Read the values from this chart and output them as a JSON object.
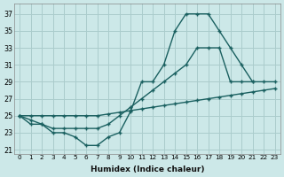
{
  "xlabel": "Humidex (Indice chaleur)",
  "background_color": "#cce8e8",
  "grid_color": "#aacccc",
  "line_color": "#1a6060",
  "xlim": [
    -0.5,
    23.5
  ],
  "ylim": [
    20.5,
    38.2
  ],
  "yticks": [
    21,
    23,
    25,
    27,
    29,
    31,
    33,
    35,
    37
  ],
  "xticks": [
    0,
    1,
    2,
    3,
    4,
    5,
    6,
    7,
    8,
    9,
    10,
    11,
    12,
    13,
    14,
    15,
    16,
    17,
    18,
    19,
    20,
    21,
    22,
    23
  ],
  "line1_x": [
    0,
    1,
    2,
    3,
    4,
    5,
    6,
    7,
    8,
    9,
    10,
    11,
    12,
    13,
    14,
    15,
    16,
    17,
    18,
    19,
    20,
    21
  ],
  "line1_y": [
    25,
    24,
    24,
    23,
    23,
    22.5,
    21.5,
    21.5,
    22.5,
    23,
    25.5,
    29,
    29,
    31,
    35,
    37,
    37,
    37,
    35,
    33,
    31,
    29
  ],
  "line2_x": [
    0,
    1,
    2,
    3,
    4,
    5,
    6,
    7,
    8,
    9,
    10,
    11,
    12,
    13,
    14,
    15,
    16,
    17,
    18,
    19,
    20,
    21,
    22,
    23
  ],
  "line2_y": [
    25,
    24.5,
    24,
    23.5,
    23.5,
    23.5,
    23.5,
    23.5,
    24,
    25,
    26,
    27,
    28,
    29,
    30,
    31,
    33,
    33,
    33,
    29,
    29,
    29,
    29,
    29
  ],
  "line3_x": [
    0,
    1,
    2,
    3,
    4,
    5,
    6,
    7,
    8,
    9,
    10,
    11,
    12,
    13,
    14,
    15,
    16,
    17,
    18,
    19,
    20,
    21,
    22,
    23
  ],
  "line3_y": [
    25,
    25,
    25,
    25,
    25,
    25,
    25,
    25,
    25.2,
    25.4,
    25.6,
    25.8,
    26,
    26.2,
    26.4,
    26.6,
    26.8,
    27,
    27.2,
    27.4,
    27.6,
    27.8,
    28,
    28.2
  ]
}
